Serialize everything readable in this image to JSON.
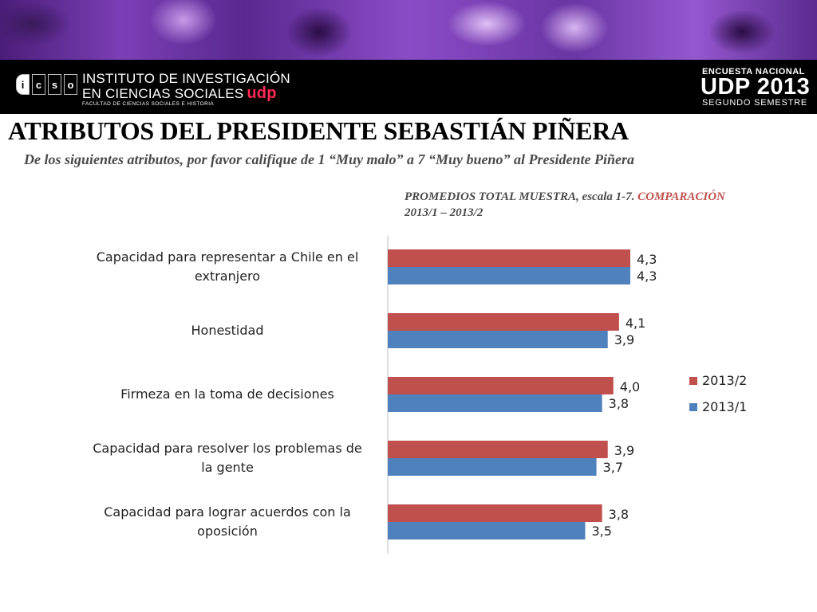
{
  "header": {
    "logo_letters": [
      "i",
      "c",
      "s",
      "o"
    ],
    "institute_line1": "INSTITUTO DE INVESTIGACIÓN",
    "institute_line2": "EN CIENCIAS SOCIALES",
    "institute_udp": "udp",
    "institute_line3": "FACULTAD DE CIENCIAS SOCIALES E HISTORIA",
    "survey_line1": "ENCUESTA NACIONAL",
    "survey_line2": "UDP 2013",
    "survey_line3": "SEGUNDO SEMESTRE"
  },
  "title": "ATRIBUTOS DEL PRESIDENTE SEBASTIÁN PIÑERA",
  "subtitle": "De los siguientes atributos, por favor califique de 1 “Muy malo”  a 7 “Muy bueno” al Presidente Piñera",
  "note": {
    "main": "PROMEDIOS TOTAL MUESTRA, escala 1-7. ",
    "highlight": "COMPARACIÓN",
    "line2": "2013/1 – 2013/2"
  },
  "colors": {
    "series_2013_2": "#c0504d",
    "series_2013_1": "#4f81bd"
  },
  "chart_data": {
    "type": "bar",
    "orientation": "horizontal",
    "categories": [
      [
        "Capacidad para representar a Chile en el",
        "extranjero"
      ],
      [
        "Honestidad"
      ],
      [
        "Firmeza en la toma de decisiones"
      ],
      [
        "Capacidad para resolver los problemas de",
        "la gente"
      ],
      [
        "Capacidad para lograr acuerdos con la",
        "oposición"
      ]
    ],
    "series": [
      {
        "name": "2013/2",
        "values": [
          4.3,
          4.1,
          4.0,
          3.9,
          3.8
        ],
        "labels": [
          "4,3",
          "4,1",
          "4,0",
          "3,9",
          "3,8"
        ]
      },
      {
        "name": "2013/1",
        "values": [
          4.3,
          3.9,
          3.8,
          3.7,
          3.5
        ],
        "labels": [
          "4,3",
          "3,9",
          "3,8",
          "3,7",
          "3,5"
        ]
      }
    ],
    "xlim": [
      0,
      4.5
    ],
    "legend": "right"
  }
}
